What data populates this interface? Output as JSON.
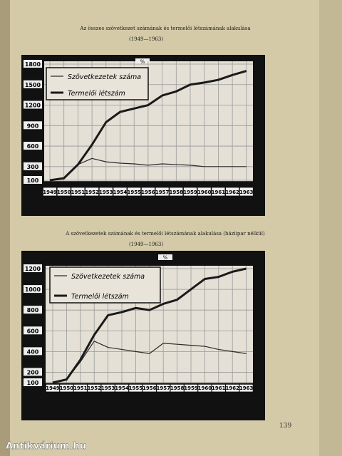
{
  "chart_data": [
    {
      "type": "line",
      "title": "Az összes szövetkezet számának és termelői létszámának alakulása",
      "subtitle": "(1949—1963)",
      "unit_label": "%",
      "categories": [
        "1949",
        "1950",
        "1951",
        "1952",
        "1953",
        "1954",
        "1955",
        "1956",
        "1957",
        "1958",
        "1959",
        "1960",
        "1961",
        "1962",
        "1963"
      ],
      "series": [
        {
          "name": "Szövetkezetek száma",
          "color": "#2a2a2a",
          "linewidth": 1.2,
          "values": [
            100,
            120,
            330,
            420,
            370,
            350,
            340,
            320,
            340,
            330,
            320,
            300,
            300,
            300,
            300
          ]
        },
        {
          "name": "Termelői létszám",
          "color": "#1a1a1a",
          "linewidth": 3,
          "values": [
            100,
            130,
            330,
            620,
            950,
            1100,
            1150,
            1200,
            1340,
            1400,
            1500,
            1530,
            1570,
            1640,
            1700
          ]
        }
      ],
      "ylim": [
        100,
        1800
      ],
      "yticks": [
        100,
        300,
        600,
        900,
        1200,
        1500,
        1800
      ],
      "grid": true,
      "legend": "upper left"
    },
    {
      "type": "line",
      "title": "A szövetkezetek számának és termelői létszámának alakulása (háziipar nélkül)",
      "subtitle": "(1949—1963)",
      "unit_label": "%",
      "categories": [
        "1949",
        "1950",
        "1951",
        "1952",
        "1953",
        "1954",
        "1955",
        "1956",
        "1957",
        "1958",
        "1959",
        "1960",
        "1961",
        "1962",
        "1963"
      ],
      "series": [
        {
          "name": "Szövetkezetek száma",
          "color": "#2a2a2a",
          "linewidth": 1.2,
          "values": [
            100,
            130,
            300,
            500,
            440,
            420,
            400,
            380,
            480,
            470,
            460,
            450,
            420,
            400,
            380
          ]
        },
        {
          "name": "Termelői létszám",
          "color": "#1a1a1a",
          "linewidth": 3,
          "values": [
            100,
            130,
            320,
            560,
            750,
            780,
            820,
            800,
            860,
            900,
            1000,
            1100,
            1120,
            1170,
            1200
          ]
        }
      ],
      "ylim": [
        100,
        1200
      ],
      "yticks": [
        100,
        200,
        400,
        600,
        800,
        1000,
        1200
      ],
      "grid": true,
      "legend": "upper left"
    }
  ],
  "page_number": "139",
  "watermark": "Antikvárium.hu"
}
